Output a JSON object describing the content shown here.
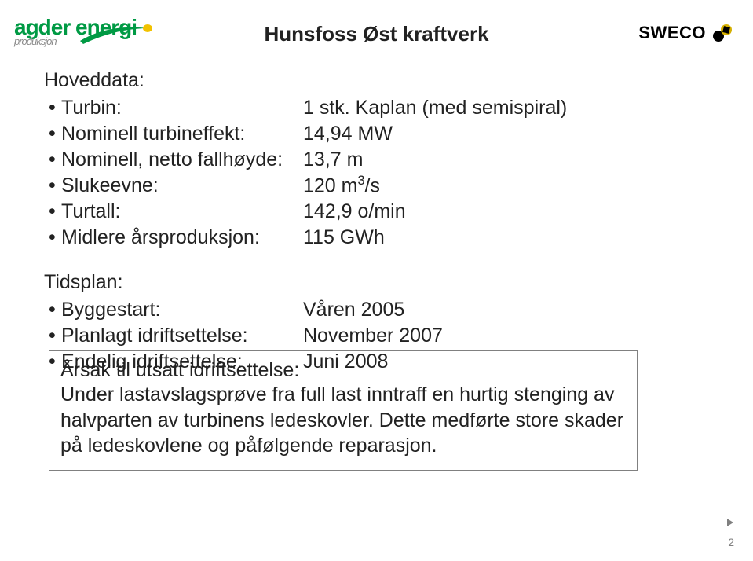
{
  "logos": {
    "left": {
      "main": "agder energi",
      "sub": "produksjon",
      "text_color": "#009a44",
      "sub_color": "#8a8a8a",
      "swoosh_color": "#009a44",
      "swoosh_yellow": "#f2c200"
    },
    "right": {
      "text": "SWECO",
      "text_color": "#000000",
      "mark_dark": "#000000",
      "mark_accent": "#d4af00"
    }
  },
  "title": "Hunsfoss Øst kraftverk",
  "sections": {
    "hoved": {
      "heading": "Hoveddata:",
      "rows": [
        {
          "label": "Turbin:",
          "value": "1 stk. Kaplan (med semispiral)"
        },
        {
          "label": "Nominell turbineffekt:",
          "value": "14,94 MW"
        },
        {
          "label": "Nominell, netto fallhøyde:",
          "value": "13,7 m"
        },
        {
          "label": "Slukeevne:",
          "value": "120 m³/s"
        },
        {
          "label": "Turtall:",
          "value": "142,9 o/min"
        },
        {
          "label": "Midlere årsproduksjon:",
          "value": "115 GWh"
        }
      ]
    },
    "tidsplan": {
      "heading": "Tidsplan:",
      "rows": [
        {
          "label": "Byggestart:",
          "value": "Våren 2005"
        },
        {
          "label": "Planlagt idriftsettelse:",
          "value": "November 2007"
        },
        {
          "label": "Endelig idriftsettelse:",
          "value": "Juni 2008"
        }
      ]
    }
  },
  "callout": {
    "heading": "Årsak til utsatt idriftsettelse:",
    "body": "Under lastavslagsprøve fra full last inntraff en hurtig stenging av halvparten av turbinens ledeskovler. Dette medførte store skader på ledeskovlene og påfølgende reparasjon."
  },
  "pagenum": "2",
  "corner_arrow_color": "#808080",
  "callout_border_color": "#808080"
}
